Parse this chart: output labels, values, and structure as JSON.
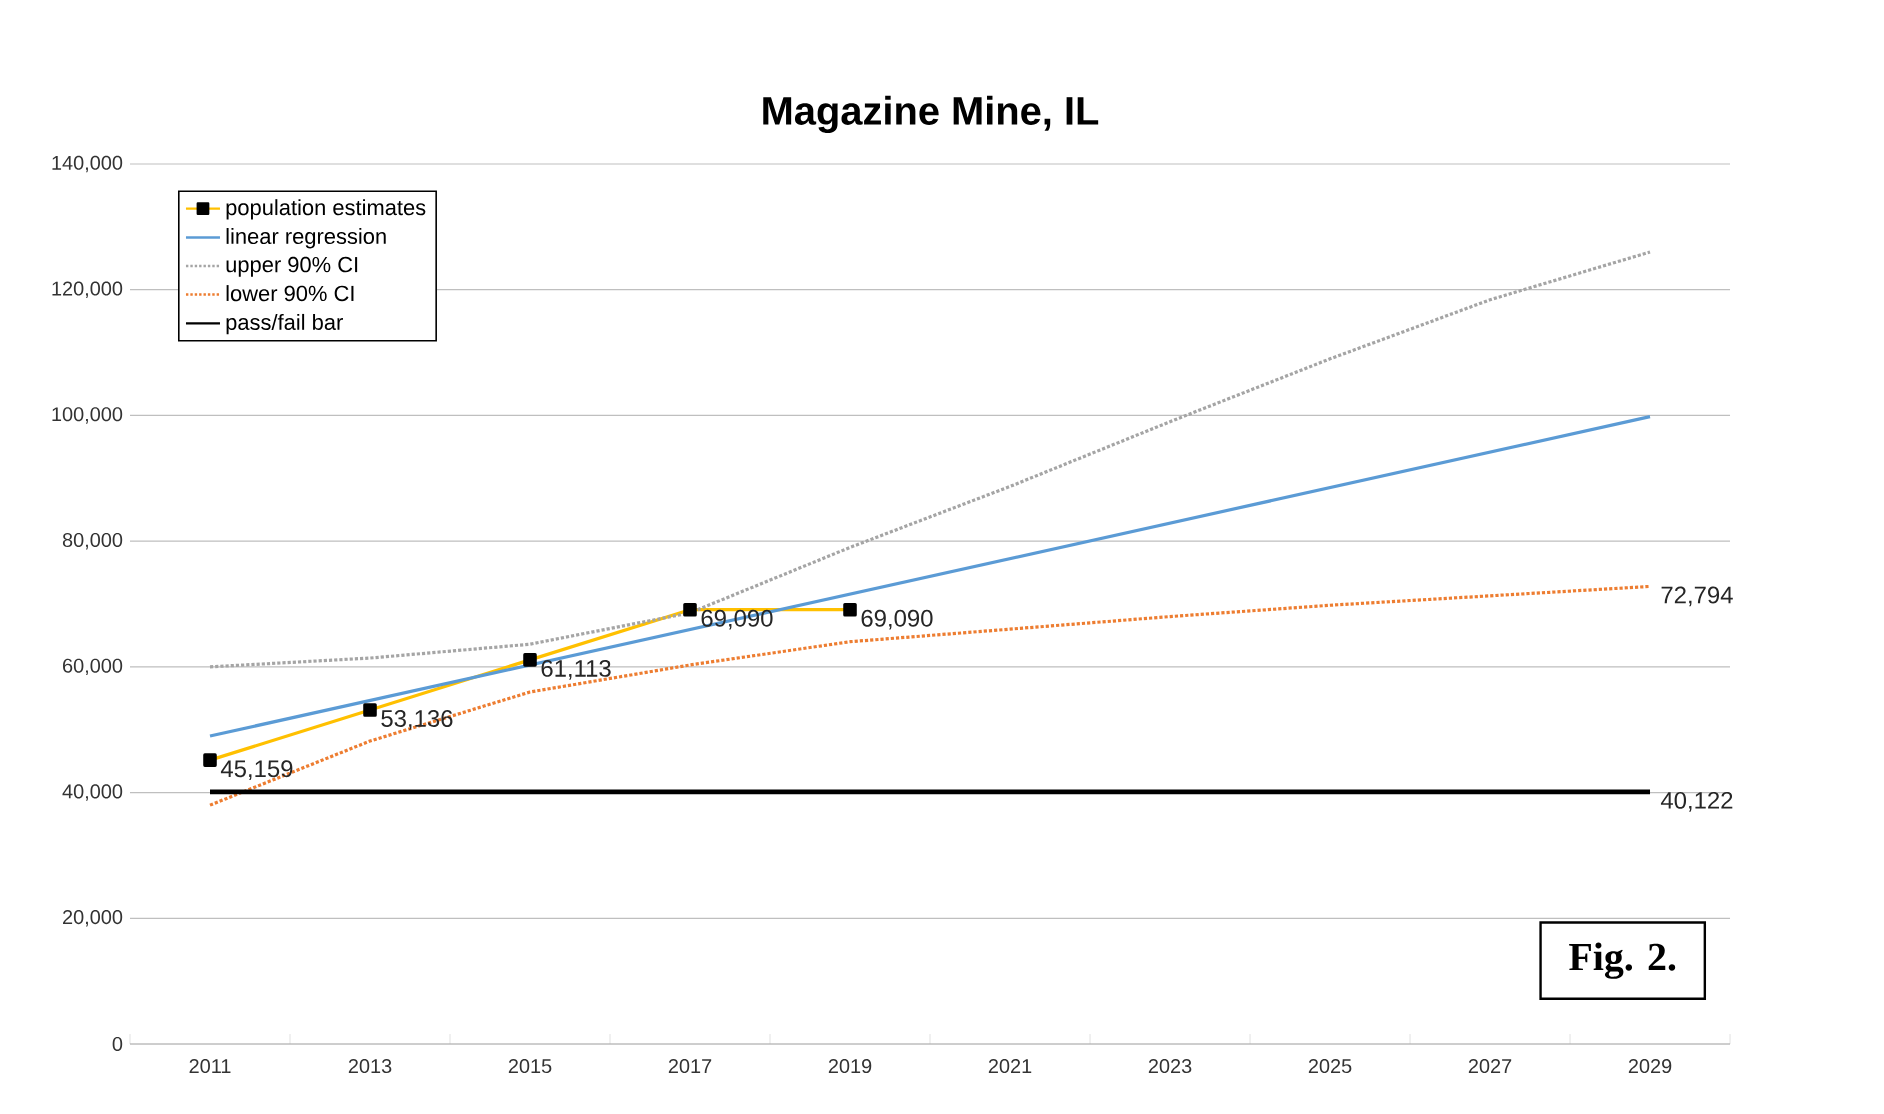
{
  "chart_data": {
    "type": "line",
    "title": "Magazine Mine, IL",
    "x": [
      2011,
      2013,
      2015,
      2017,
      2019
    ],
    "series": [
      {
        "name": "population estimates",
        "color": "#ffc000",
        "marker": "square",
        "line_style": "solid",
        "values": [
          45159,
          53136,
          61113,
          69090,
          69090
        ],
        "value_labels": [
          "45,159",
          "53,136",
          "61,113",
          "69,090",
          "69,090"
        ]
      },
      {
        "name": "linear regression",
        "color": "#5b9bd5",
        "marker": "none",
        "line_style": "solid",
        "x": [
          2011,
          2029
        ],
        "values": [
          49000,
          99800
        ]
      },
      {
        "name": "upper 90% CI",
        "color": "#a5a5a5",
        "marker": "none",
        "line_style": "dotted",
        "x": [
          2011,
          2013,
          2015,
          2017,
          2019,
          2021,
          2023,
          2025,
          2027,
          2029
        ],
        "values": [
          60000,
          61400,
          63600,
          68600,
          79000,
          88700,
          99000,
          109000,
          118400,
          126000
        ]
      },
      {
        "name": "lower 90% CI",
        "color": "#ed7d31",
        "marker": "none",
        "line_style": "dotted",
        "x": [
          2011,
          2013,
          2015,
          2017,
          2019,
          2021,
          2023,
          2025,
          2027,
          2029
        ],
        "values": [
          38000,
          48200,
          56000,
          60300,
          64000,
          66000,
          68000,
          69800,
          71300,
          72794
        ],
        "value_labels": [
          null,
          null,
          null,
          null,
          null,
          null,
          null,
          null,
          null,
          "72,794"
        ]
      },
      {
        "name": "pass/fail bar",
        "color": "#000000",
        "marker": "none",
        "line_style": "solid",
        "x": [
          2011,
          2029
        ],
        "values": [
          40122,
          40122
        ],
        "value_labels": [
          null,
          "40,122"
        ]
      }
    ],
    "xlim": [
      2010,
      2030
    ],
    "xticks": [
      2011,
      2013,
      2015,
      2017,
      2019,
      2021,
      2023,
      2025,
      2027,
      2029
    ],
    "ylim": [
      0,
      140000
    ],
    "yticks": [
      {
        "value": 0,
        "label": "0"
      },
      {
        "value": 20000,
        "label": "20,000"
      },
      {
        "value": 40000,
        "label": "40,000"
      },
      {
        "value": 60000,
        "label": "60,000"
      },
      {
        "value": 80000,
        "label": "80,000"
      },
      {
        "value": 100000,
        "label": "100,000"
      },
      {
        "value": 120000,
        "label": "120,000"
      },
      {
        "value": 140000,
        "label": "140,000"
      }
    ],
    "grid": "y",
    "legend": "top left",
    "annotations": [
      "Fig. 2."
    ]
  }
}
